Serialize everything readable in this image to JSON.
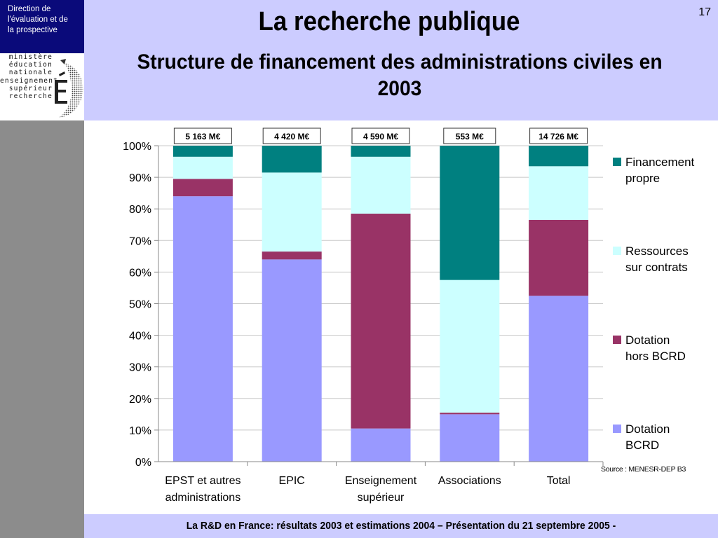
{
  "header": {
    "direction_lines": [
      "Direction de",
      "l'évaluation  et de",
      "la prospective"
    ],
    "ministere_lines": [
      "ministère",
      "éducation",
      "nationale",
      "enseignement",
      "supérieur",
      "recherche"
    ],
    "title": "La recherche publique",
    "subtitle": "Structure de financement des administrations civiles en 2003",
    "page_number": "17"
  },
  "footer": {
    "text": "La R&D en France: résultats 2003 et estimations 2004 – Présentation du 21 septembre 2005 -"
  },
  "source": "Source : MENESR-DEP B3",
  "colors": {
    "header_band": "#ccccff",
    "direction_box": "#0a0a7a",
    "left_strip": "#8c8c8c"
  },
  "chart_data": {
    "type": "bar",
    "stacked": "percent",
    "categories": [
      [
        "EPST et autres",
        "administrations"
      ],
      [
        "EPIC"
      ],
      [
        "Enseignement",
        "supérieur"
      ],
      [
        "Associations"
      ],
      [
        "Total"
      ]
    ],
    "totals": [
      "5 163 M€",
      "4 420 M€",
      "4 590 M€",
      "553 M€",
      "14 726 M€"
    ],
    "series": [
      {
        "name": "Dotation BCRD",
        "color": "#9999ff",
        "values": [
          84,
          64,
          10.5,
          15,
          52.5
        ]
      },
      {
        "name": "Dotation hors BCRD",
        "color": "#993366",
        "values": [
          5.5,
          2.5,
          68,
          0.5,
          24
        ]
      },
      {
        "name": "Ressources sur contrats",
        "color": "#ccffff",
        "values": [
          7,
          25,
          18,
          42,
          17
        ]
      },
      {
        "name": "Financement propre",
        "color": "#008080",
        "values": [
          3.5,
          8.5,
          3.5,
          42.5,
          6.5
        ]
      }
    ],
    "legend_order": [
      3,
      2,
      1,
      0
    ],
    "legend_lines": [
      [
        "Dotation",
        "BCRD"
      ],
      [
        "Dotation",
        "hors BCRD"
      ],
      [
        "Ressources",
        "sur contrats"
      ],
      [
        "Financement",
        "propre"
      ]
    ],
    "y_ticks": [
      "0%",
      "10%",
      "20%",
      "30%",
      "40%",
      "50%",
      "60%",
      "70%",
      "80%",
      "90%",
      "100%"
    ],
    "ylim": [
      0,
      100
    ],
    "grid": true,
    "legend_position": "right"
  }
}
